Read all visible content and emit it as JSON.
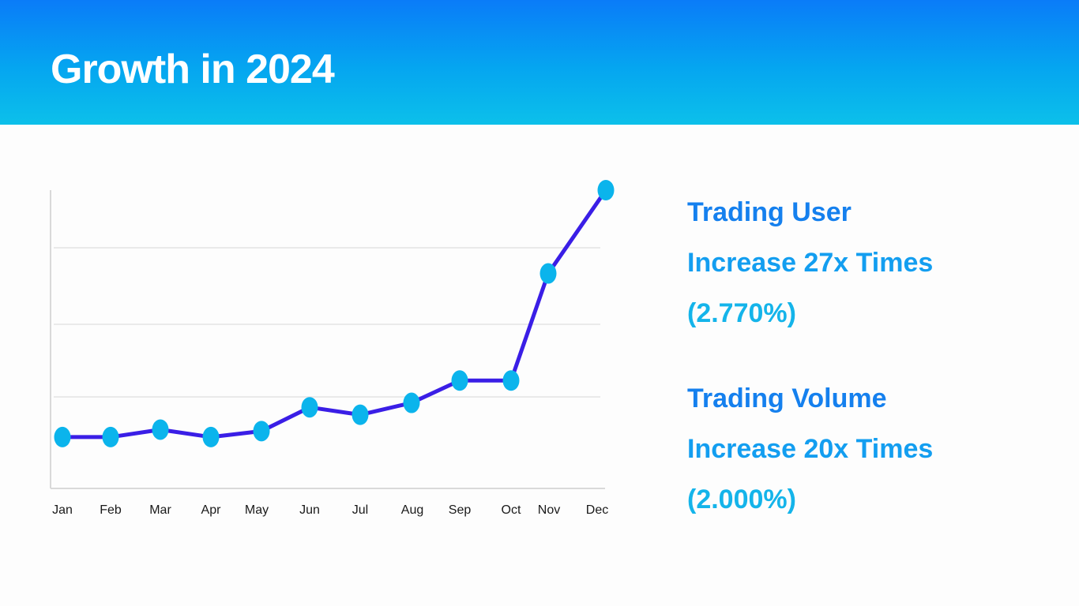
{
  "header": {
    "title": "Growth in 2024"
  },
  "chart_data": {
    "type": "line",
    "title": "",
    "xlabel": "",
    "ylabel": "",
    "categories": [
      "Jan",
      "Feb",
      "Mar",
      "Apr",
      "May",
      "Jun",
      "Jul",
      "Aug",
      "Sep",
      "Oct",
      "Nov",
      "Dec"
    ],
    "values": [
      17,
      17,
      19.5,
      17,
      19,
      27,
      24.5,
      28.5,
      36,
      36,
      72,
      100
    ],
    "ylim": [
      0,
      100
    ],
    "grid": true,
    "y_tick_labels_shown": false,
    "line_color": "#3a1ee6",
    "marker_color": "#0bb4ec"
  },
  "stats": [
    {
      "heading": "Trading User",
      "detail": "Increase 27x Times",
      "percent": "(2.770%)"
    },
    {
      "heading": "Trading Volume",
      "detail": "Increase 20x Times",
      "percent": "(2.000%)"
    }
  ]
}
